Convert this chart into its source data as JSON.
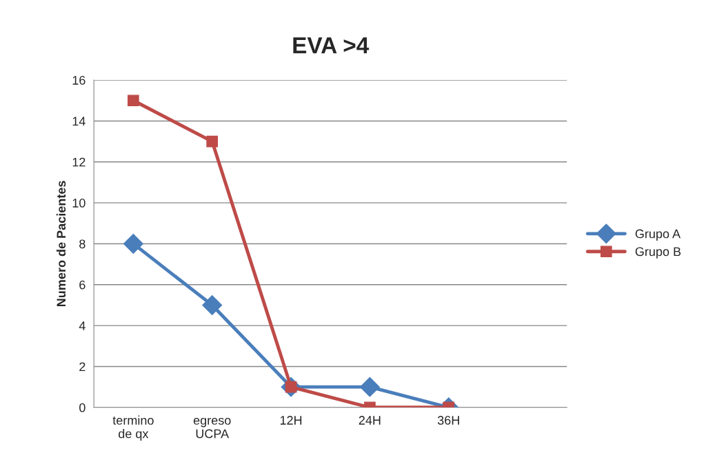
{
  "chart_data": {
    "type": "line",
    "title": "EVA >4",
    "ylabel": "Numero de Pacientes",
    "categories": [
      "termino\nde qx",
      "egreso\nUCPA",
      "12H",
      "24H",
      "36H",
      null
    ],
    "series": [
      {
        "name": "Grupo A",
        "color": "#4a7ebb",
        "marker": "diamond",
        "values": [
          8,
          5,
          1,
          1,
          0,
          null
        ]
      },
      {
        "name": "Grupo B",
        "color": "#be4b48",
        "marker": "square",
        "values": [
          15,
          13,
          1,
          0,
          0,
          null
        ]
      }
    ],
    "ylim": [
      0,
      16
    ],
    "yticks": [
      0,
      2,
      4,
      6,
      8,
      10,
      12,
      14,
      16
    ],
    "grid": "y",
    "legend": "right",
    "line_style": "solid"
  }
}
